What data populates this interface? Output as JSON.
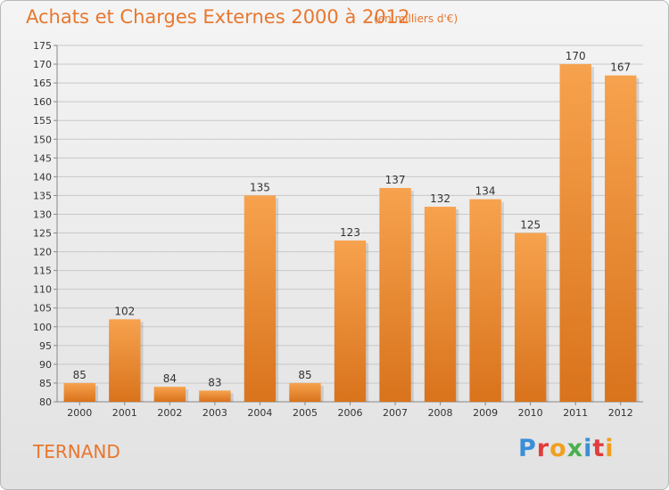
{
  "header": {
    "title": "Achats et Charges Externes 2000 à 2012",
    "unit": "(en milliers d'€)"
  },
  "footer": {
    "commune": "TERNAND",
    "logo": "Proxiti",
    "logo_colors": [
      "#3a8fd8",
      "#e23c3c",
      "#f0a020",
      "#4caf50",
      "#3a8fd8",
      "#e23c3c",
      "#f0a020"
    ]
  },
  "colors": {
    "title": "#e8772e",
    "bar_top": "#f7a24e",
    "bar_bottom": "#d9731c",
    "grid": "#c8c8c8"
  },
  "chart_data": {
    "type": "bar",
    "title": "Achats et Charges Externes 2000 à 2012",
    "xlabel": "",
    "ylabel": "",
    "categories": [
      "2000",
      "2001",
      "2002",
      "2003",
      "2004",
      "2005",
      "2006",
      "2007",
      "2008",
      "2009",
      "2010",
      "2011",
      "2012"
    ],
    "values": [
      85,
      102,
      84,
      83,
      135,
      85,
      123,
      137,
      132,
      134,
      125,
      170,
      167
    ],
    "ylim": [
      80,
      175
    ],
    "yticks": [
      80,
      85,
      90,
      95,
      100,
      105,
      110,
      115,
      120,
      125,
      130,
      135,
      140,
      145,
      150,
      155,
      160,
      165,
      170,
      175
    ],
    "grid": true,
    "legend": "none"
  }
}
